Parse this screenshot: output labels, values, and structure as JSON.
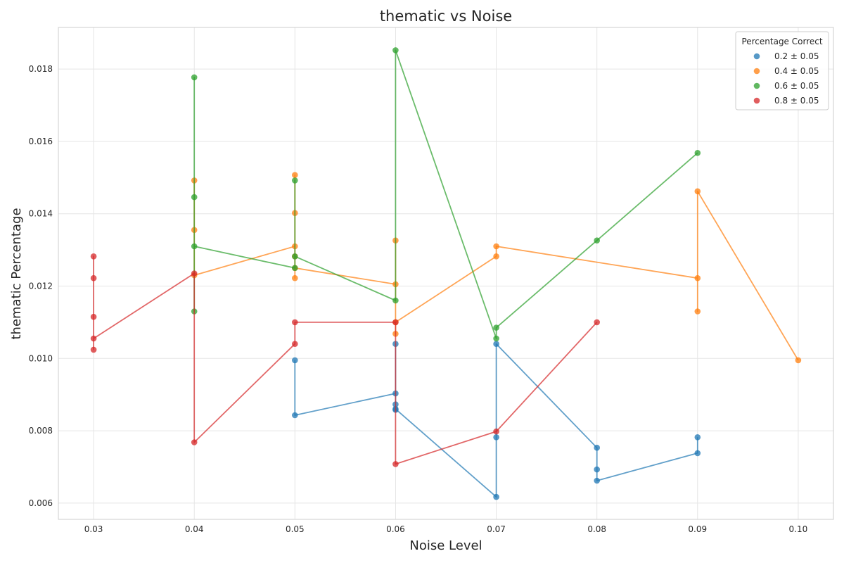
{
  "chart_data": {
    "type": "line",
    "title": "thematic vs Noise",
    "xlabel": "Noise Level",
    "ylabel": "thematic Percentage",
    "xlim": [
      0.0265,
      0.1035
    ],
    "ylim": [
      0.00555,
      0.01915
    ],
    "xticks": [
      "0.03",
      "0.04",
      "0.05",
      "0.06",
      "0.07",
      "0.08",
      "0.09",
      "0.10"
    ],
    "xtick_values": [
      0.03,
      0.04,
      0.05,
      0.06,
      0.07,
      0.08,
      0.09,
      0.1
    ],
    "yticks": [
      "0.006",
      "0.008",
      "0.010",
      "0.012",
      "0.014",
      "0.016",
      "0.018"
    ],
    "ytick_values": [
      0.006,
      0.008,
      0.01,
      0.012,
      0.014,
      0.016,
      0.018
    ],
    "grid": true,
    "legend": {
      "title": "Percentage Correct",
      "placement": "top-right"
    },
    "series": [
      {
        "name": "0.2 ± 0.05",
        "color": "#1f77b4",
        "points": [
          [
            0.05,
            0.00995
          ],
          [
            0.05,
            0.00843
          ],
          [
            0.06,
            0.00903
          ],
          [
            0.06,
            0.00873
          ],
          [
            0.06,
            0.00858
          ],
          [
            0.06,
            0.0104
          ],
          [
            0.06,
            0.0086
          ],
          [
            0.07,
            0.00617
          ],
          [
            0.07,
            0.00782
          ],
          [
            0.07,
            0.0104
          ],
          [
            0.08,
            0.00753
          ],
          [
            0.08,
            0.00693
          ],
          [
            0.08,
            0.00662
          ],
          [
            0.09,
            0.00738
          ],
          [
            0.09,
            0.00782
          ]
        ]
      },
      {
        "name": "0.4 ± 0.05",
        "color": "#ff7f0e",
        "points": [
          [
            0.04,
            0.01492
          ],
          [
            0.04,
            0.01355
          ],
          [
            0.04,
            0.0123
          ],
          [
            0.05,
            0.0131
          ],
          [
            0.05,
            0.01507
          ],
          [
            0.05,
            0.01402
          ],
          [
            0.05,
            0.01282
          ],
          [
            0.05,
            0.01222
          ],
          [
            0.05,
            0.0125
          ],
          [
            0.06,
            0.01205
          ],
          [
            0.06,
            0.01326
          ],
          [
            0.06,
            0.01068
          ],
          [
            0.06,
            0.011
          ],
          [
            0.07,
            0.01282
          ],
          [
            0.07,
            0.0131
          ],
          [
            0.09,
            0.01222
          ],
          [
            0.09,
            0.0113
          ],
          [
            0.09,
            0.01462
          ],
          [
            0.1,
            0.00995
          ]
        ]
      },
      {
        "name": "0.6 ± 0.05",
        "color": "#2ca02c",
        "points": [
          [
            0.04,
            0.0113
          ],
          [
            0.04,
            0.01777
          ],
          [
            0.04,
            0.01446
          ],
          [
            0.04,
            0.0131
          ],
          [
            0.05,
            0.0125
          ],
          [
            0.05,
            0.01492
          ],
          [
            0.05,
            0.01282
          ],
          [
            0.06,
            0.0116
          ],
          [
            0.06,
            0.01852
          ],
          [
            0.07,
            0.01055
          ],
          [
            0.07,
            0.01085
          ],
          [
            0.08,
            0.01326
          ],
          [
            0.09,
            0.01568
          ]
        ]
      },
      {
        "name": "0.8 ± 0.05",
        "color": "#d62728",
        "points": [
          [
            0.03,
            0.01024
          ],
          [
            0.03,
            0.01282
          ],
          [
            0.03,
            0.01222
          ],
          [
            0.03,
            0.01115
          ],
          [
            0.03,
            0.01055
          ],
          [
            0.04,
            0.01235
          ],
          [
            0.04,
            0.00768
          ],
          [
            0.05,
            0.0104
          ],
          [
            0.05,
            0.011
          ],
          [
            0.06,
            0.011
          ],
          [
            0.06,
            0.00708
          ],
          [
            0.07,
            0.00798
          ],
          [
            0.08,
            0.011
          ]
        ]
      }
    ]
  }
}
